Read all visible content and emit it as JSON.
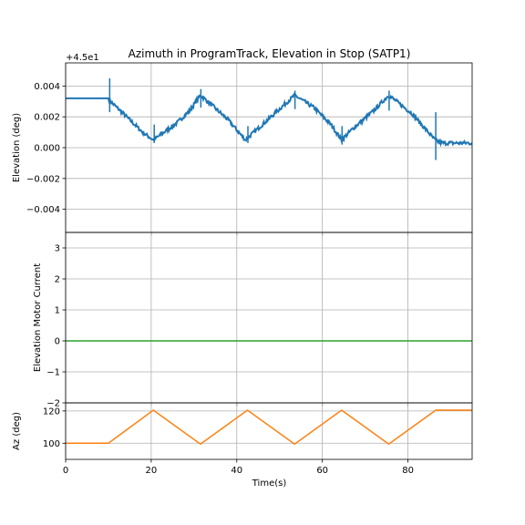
{
  "title": "Azimuth in ProgramTrack, Elevation in Stop (SATP1)",
  "x_label": "Time(s)",
  "chart_data": [
    {
      "type": "line",
      "ylabel": "Elevation (deg)",
      "offset_text": "+4.5e1",
      "xlim": [
        0,
        95
      ],
      "ylim": [
        -0.0055,
        0.0055
      ],
      "yticks": [
        -0.004,
        -0.002,
        0.0,
        0.002,
        0.004
      ],
      "ytick_labels": [
        "−0.004",
        "−0.002",
        "0.000",
        "0.002",
        "0.004"
      ],
      "grid": true,
      "series": [
        {
          "color": "#1f77b4",
          "x": [
            0,
            10,
            10.5,
            12,
            15,
            18,
            20.5,
            22,
            26,
            29,
            31.5,
            34,
            38,
            42,
            48,
            53.5,
            58,
            62,
            64.5,
            67,
            72,
            75.5,
            81,
            86.3,
            87,
            88,
            89,
            95
          ],
          "y": [
            0.0032,
            0.0032,
            0.003,
            0.0026,
            0.0018,
            0.001,
            0.0005,
            0.0008,
            0.0016,
            0.0024,
            0.0034,
            0.0028,
            0.0018,
            0.0005,
            0.002,
            0.0034,
            0.0026,
            0.0015,
            0.0005,
            0.0012,
            0.0024,
            0.0034,
            0.0022,
            0.0005,
            0.0004,
            0.0003,
            0.0003,
            0.0003
          ]
        }
      ]
    },
    {
      "type": "line",
      "ylabel": "Elevation Motor Current",
      "xlim": [
        0,
        95
      ],
      "ylim": [
        -2,
        3.5
      ],
      "yticks": [
        -2,
        -1,
        0,
        1,
        2,
        3
      ],
      "ytick_labels": [
        "−2",
        "−1",
        "0",
        "1",
        "2",
        "3"
      ],
      "grid": true,
      "series": [
        {
          "color": "#2ca02c",
          "x": [
            0,
            95
          ],
          "y": [
            0,
            0
          ]
        }
      ]
    },
    {
      "type": "line",
      "ylabel": "Az (deg)",
      "xlim": [
        0,
        95
      ],
      "ylim": [
        90,
        125
      ],
      "yticks": [
        100,
        120
      ],
      "ytick_labels": [
        "100",
        "120"
      ],
      "xticks": [
        0,
        20,
        40,
        60,
        80
      ],
      "xtick_labels": [
        "0",
        "20",
        "40",
        "60",
        "80"
      ],
      "grid": true,
      "series": [
        {
          "color": "#ff7f0e",
          "x": [
            0,
            10,
            20.5,
            31.5,
            42.5,
            53.5,
            64.5,
            75.5,
            86.5,
            95
          ],
          "y": [
            100,
            100,
            120.5,
            99.5,
            120.5,
            99.5,
            120.5,
            99.5,
            120.5,
            120.5
          ]
        }
      ]
    }
  ]
}
